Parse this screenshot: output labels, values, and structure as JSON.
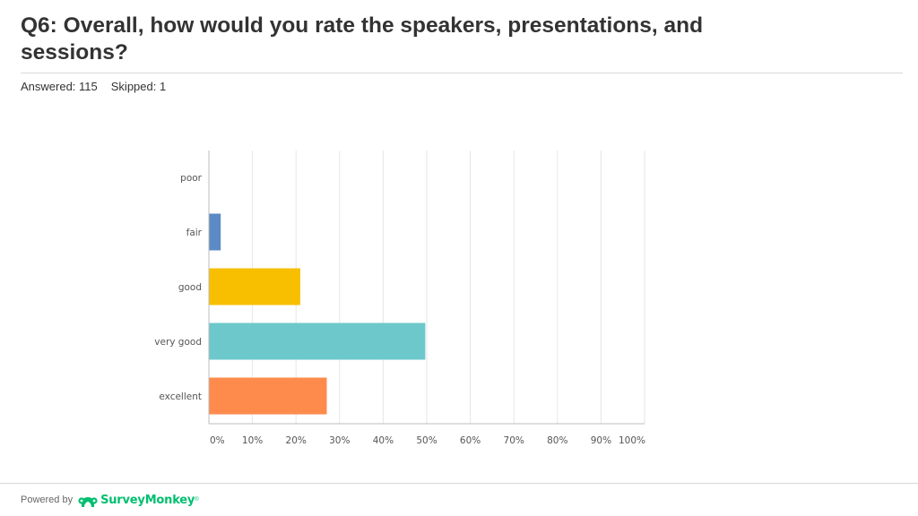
{
  "question": {
    "title": "Q6: Overall, how would you rate the speakers, presentations, and sessions?"
  },
  "stats": {
    "answered": "Answered: 115",
    "skipped": "Skipped: 1"
  },
  "chart_data": {
    "type": "bar",
    "orientation": "horizontal",
    "categories": [
      "poor",
      "fair",
      "good",
      "very good",
      "excellent"
    ],
    "values": [
      0,
      2.61,
      20.87,
      49.57,
      26.96
    ],
    "colors": [
      "#5b8ac4",
      "#5b8ac4",
      "#f8bf00",
      "#6dc8cb",
      "#fe8b4c"
    ],
    "xlim": [
      0,
      100
    ],
    "ticks": [
      "0%",
      "10%",
      "20%",
      "30%",
      "40%",
      "50%",
      "60%",
      "70%",
      "80%",
      "90%",
      "100%"
    ],
    "grid": true
  },
  "footer": {
    "powered_by": "Powered by",
    "brand": "SurveyMonkey",
    "trademark": "®"
  },
  "colors": {
    "brand_green": "#00bf6f",
    "text": "#333333",
    "rule": "#d8d8d8"
  }
}
